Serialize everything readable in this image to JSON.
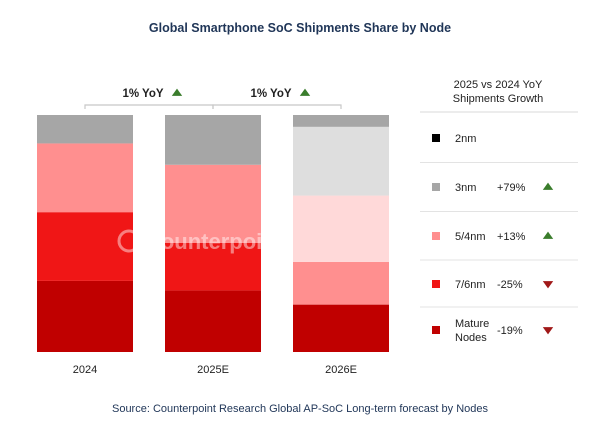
{
  "chart_data": {
    "type": "bar",
    "stacked": true,
    "normalized": true,
    "title": "Global Smartphone SoC Shipments Share by Node",
    "source": "Source: Counterpoint Research Global AP-SoC Long-term forecast by Nodes",
    "watermark": "Counterpoint",
    "categories": [
      "2024",
      "2025E",
      "2026E"
    ],
    "ylim": [
      0,
      100
    ],
    "series": [
      {
        "name": "Mature Nodes",
        "color": "#c00000",
        "values": [
          30,
          26,
          20
        ],
        "growth": "-19%",
        "trend": "down"
      },
      {
        "name": "7/6nm",
        "color": "#f01616",
        "values": [
          29,
          20,
          0
        ],
        "growth": "-25%",
        "trend": "down"
      },
      {
        "name": "5/4nm",
        "color": "#ff8f8f",
        "values": [
          29,
          33,
          18
        ],
        "growth": "+13%",
        "trend": "up"
      },
      {
        "name": "",
        "color": "#ffd9d9",
        "values": [
          0,
          0,
          28
        ],
        "growth": "",
        "trend": ""
      },
      {
        "name": "3nm",
        "color": "#a6a6a6",
        "values": [
          12,
          21,
          0
        ],
        "growth": "+79%",
        "trend": "up"
      },
      {
        "name": "",
        "color": "#dedede",
        "values": [
          0,
          0,
          29
        ],
        "growth": "",
        "trend": ""
      },
      {
        "name": "2nm",
        "color": "#000000",
        "values": [
          0,
          0,
          0
        ],
        "growth": "",
        "trend": ""
      },
      {
        "name": "",
        "color": "#a6a6a6",
        "values": [
          0,
          0,
          5
        ],
        "growth": "",
        "trend": ""
      }
    ],
    "annotations": [
      {
        "text": "1% YoY",
        "from": "2024",
        "to": "2025E",
        "trend": "up"
      },
      {
        "text": "1% YoY",
        "from": "2025E",
        "to": "2026E",
        "trend": "up"
      }
    ],
    "legend": {
      "position": "right",
      "header": [
        "2025 vs 2024 YoY",
        "Shipments  Growth"
      ],
      "items": [
        {
          "label": [
            "2nm"
          ],
          "color": "#000000",
          "growth": "",
          "trend": ""
        },
        {
          "label": [
            "3nm"
          ],
          "color": "#a6a6a6",
          "growth": "+79%",
          "trend": "up"
        },
        {
          "label": [
            "5/4nm"
          ],
          "color": "#ff8f8f",
          "growth": "+13%",
          "trend": "up"
        },
        {
          "label": [
            "7/6nm"
          ],
          "color": "#f01616",
          "growth": "-25%",
          "trend": "down"
        },
        {
          "label": [
            "Mature",
            "Nodes"
          ],
          "color": "#c00000",
          "growth": "-19%",
          "trend": "down"
        }
      ]
    },
    "trend_colors": {
      "up": "#3a7d2c",
      "down": "#a01818"
    }
  }
}
